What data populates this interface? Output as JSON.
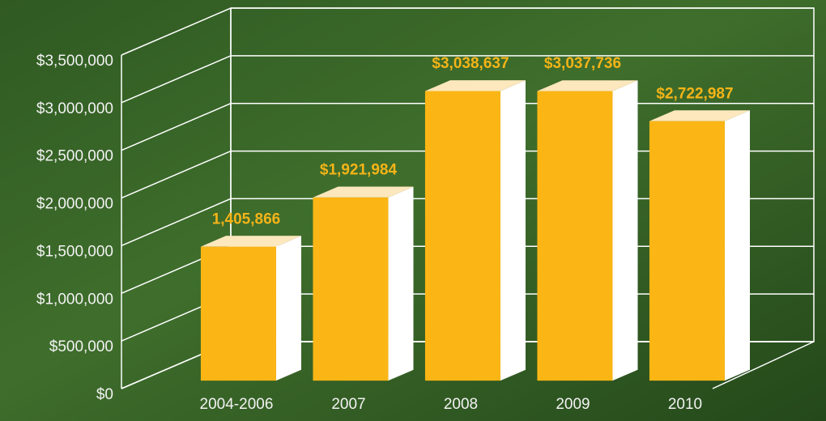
{
  "chart_data": {
    "type": "bar3d",
    "categories": [
      "2004-2006",
      "2007",
      "2008",
      "2009",
      "2010"
    ],
    "values": [
      1405866,
      1921984,
      3038637,
      3037736,
      2722987
    ],
    "value_labels": [
      "1,405,866",
      "$1,921,984",
      "$3,038,637",
      "$3,037,736",
      "$2,722,987"
    ],
    "color": "#fbb615",
    "ylim": [
      0,
      3500000
    ],
    "yticks": [
      {
        "value": 0,
        "label": "$0"
      },
      {
        "value": 500000,
        "label": "$500,000"
      },
      {
        "value": 1000000,
        "label": "$1,000,000"
      },
      {
        "value": 1500000,
        "label": "$1,500,000"
      },
      {
        "value": 2000000,
        "label": "$2,000,000"
      },
      {
        "value": 2500000,
        "label": "$2,500,000"
      },
      {
        "value": 3000000,
        "label": "$3,000,000"
      },
      {
        "value": 3500000,
        "label": "$3,500,000"
      }
    ],
    "grid": true
  }
}
